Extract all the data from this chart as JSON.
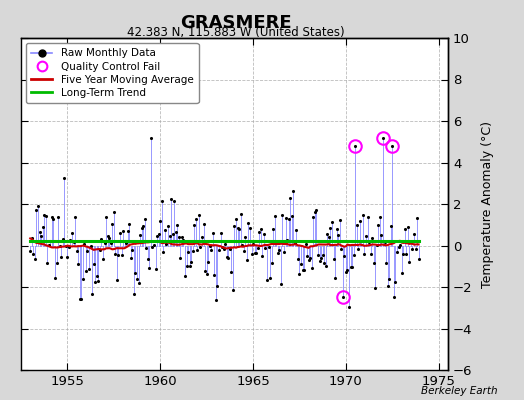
{
  "title": "GRASMERE",
  "subtitle": "42.383 N, 115.883 W (United States)",
  "ylabel": "Temperature Anomaly (°C)",
  "credit": "Berkeley Earth",
  "ylim": [
    -6,
    10
  ],
  "yticks": [
    -6,
    -4,
    -2,
    0,
    2,
    4,
    6,
    8,
    10
  ],
  "xlim": [
    1952.5,
    1975.5
  ],
  "xticks": [
    1955,
    1960,
    1965,
    1970,
    1975
  ],
  "fig_bg_color": "#d8d8d8",
  "plot_bg_color": "#ffffff",
  "line_color": "#8888ff",
  "dot_color": "#000000",
  "ma_color": "#cc0000",
  "trend_color": "#00bb00",
  "qc_color": "#ff00ff",
  "seed": 12345,
  "n_months": 252,
  "start_year": 1953.0
}
